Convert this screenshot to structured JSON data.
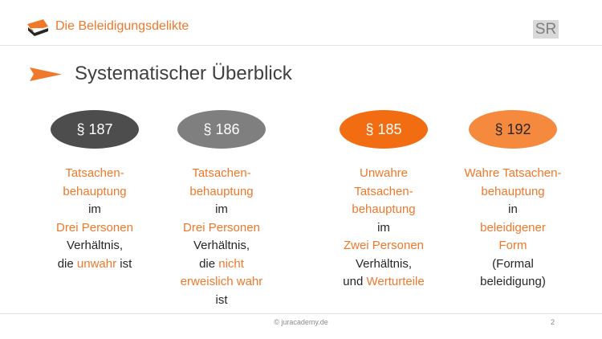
{
  "header": {
    "title": "Die Beleidigungsdelikte",
    "badge": "SR"
  },
  "section": {
    "title": "Systematischer Überblick"
  },
  "colors": {
    "accent": "#f0782a",
    "oval_187": "#4d4d4d",
    "oval_186": "#7f7f7f",
    "oval_185": "#f26c11",
    "oval_192": "#f58a3f"
  },
  "icons": {
    "logo": "book-cap-logo-icon",
    "bullet": "orange-arrow-icon"
  },
  "columns": [
    {
      "section": "§ 187",
      "lines": [
        "Tatsachen-",
        "behauptung",
        "im",
        "Drei Personen",
        "Verhältnis,",
        "die unwahr ist"
      ]
    },
    {
      "section": "§ 186",
      "lines": [
        "Tatsachen-",
        "behauptung",
        "im",
        "Drei Personen",
        "Verhältnis,",
        "die nicht",
        "erweislich wahr",
        "ist"
      ]
    },
    {
      "section": "§ 185",
      "lines": [
        "Unwahre",
        "Tatsachen-",
        "behauptung",
        "im",
        "Zwei Personen",
        "Verhältnis,",
        "und Werturteile"
      ]
    },
    {
      "section": "§ 192",
      "lines": [
        "Wahre Tatsachen-",
        "behauptung",
        "in",
        "beleidigener",
        "Form",
        "(Formal",
        "beleidigung)"
      ]
    }
  ],
  "footer": {
    "copyright": "© juracademy.de",
    "page": "2"
  }
}
